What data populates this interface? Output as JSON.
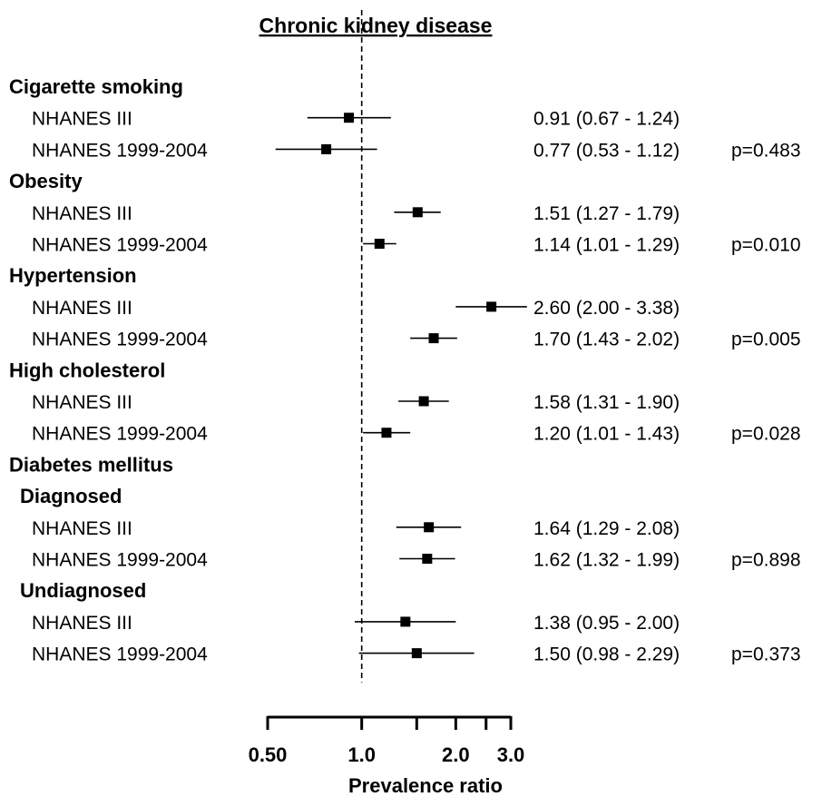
{
  "chart_data": {
    "type": "forest",
    "title": "Chronic kidney disease",
    "xlabel": "Prevalence ratio",
    "xscale": "log",
    "xlim": [
      0.5,
      3.0
    ],
    "reference_line": 1.0,
    "x_ticks": [
      0.5,
      1.0,
      1.5,
      2.0,
      2.5,
      3.0
    ],
    "x_tick_labels": [
      {
        "value": 0.5,
        "label": "0.50"
      },
      {
        "value": 1.0,
        "label": "1.0"
      },
      {
        "value": 2.0,
        "label": "2.0"
      },
      {
        "value": 3.0,
        "label": "3.0"
      }
    ],
    "rows": [
      {
        "kind": "group",
        "label": "Cigarette smoking"
      },
      {
        "kind": "data",
        "label": "NHANES III",
        "estimate": 0.91,
        "lower": 0.67,
        "upper": 1.24,
        "ci_text": "0.91 (0.67 - 1.24)",
        "p": ""
      },
      {
        "kind": "data",
        "label": "NHANES 1999-2004",
        "estimate": 0.77,
        "lower": 0.53,
        "upper": 1.12,
        "ci_text": "0.77 (0.53 - 1.12)",
        "p": "p=0.483"
      },
      {
        "kind": "group",
        "label": "Obesity"
      },
      {
        "kind": "data",
        "label": "NHANES III",
        "estimate": 1.51,
        "lower": 1.27,
        "upper": 1.79,
        "ci_text": "1.51 (1.27 - 1.79)",
        "p": ""
      },
      {
        "kind": "data",
        "label": "NHANES 1999-2004",
        "estimate": 1.14,
        "lower": 1.01,
        "upper": 1.29,
        "ci_text": "1.14 (1.01 - 1.29)",
        "p": "p=0.010"
      },
      {
        "kind": "group",
        "label": "Hypertension"
      },
      {
        "kind": "data",
        "label": "NHANES III",
        "estimate": 2.6,
        "lower": 2.0,
        "upper": 3.38,
        "ci_text": "2.60 (2.00 - 3.38)",
        "p": ""
      },
      {
        "kind": "data",
        "label": "NHANES 1999-2004",
        "estimate": 1.7,
        "lower": 1.43,
        "upper": 2.02,
        "ci_text": "1.70 (1.43 - 2.02)",
        "p": "p=0.005"
      },
      {
        "kind": "group",
        "label": "High cholesterol"
      },
      {
        "kind": "data",
        "label": "NHANES III",
        "estimate": 1.58,
        "lower": 1.31,
        "upper": 1.9,
        "ci_text": "1.58 (1.31 - 1.90)",
        "p": ""
      },
      {
        "kind": "data",
        "label": "NHANES 1999-2004",
        "estimate": 1.2,
        "lower": 1.01,
        "upper": 1.43,
        "ci_text": "1.20 (1.01 - 1.43)",
        "p": "p=0.028"
      },
      {
        "kind": "group",
        "label": "Diabetes mellitus"
      },
      {
        "kind": "subgroup",
        "label": "Diagnosed"
      },
      {
        "kind": "data",
        "label": "NHANES III",
        "estimate": 1.64,
        "lower": 1.29,
        "upper": 2.08,
        "ci_text": "1.64 (1.29 - 2.08)",
        "p": ""
      },
      {
        "kind": "data",
        "label": "NHANES 1999-2004",
        "estimate": 1.62,
        "lower": 1.32,
        "upper": 1.99,
        "ci_text": "1.62 (1.32 - 1.99)",
        "p": "p=0.898"
      },
      {
        "kind": "subgroup",
        "label": "Undiagnosed"
      },
      {
        "kind": "data",
        "label": "NHANES III",
        "estimate": 1.38,
        "lower": 0.95,
        "upper": 2.0,
        "ci_text": "1.38 (0.95 - 2.00)",
        "p": ""
      },
      {
        "kind": "data",
        "label": "NHANES 1999-2004",
        "estimate": 1.5,
        "lower": 0.98,
        "upper": 2.29,
        "ci_text": "1.50 (0.98 - 2.29)",
        "p": "p=0.373"
      }
    ]
  }
}
